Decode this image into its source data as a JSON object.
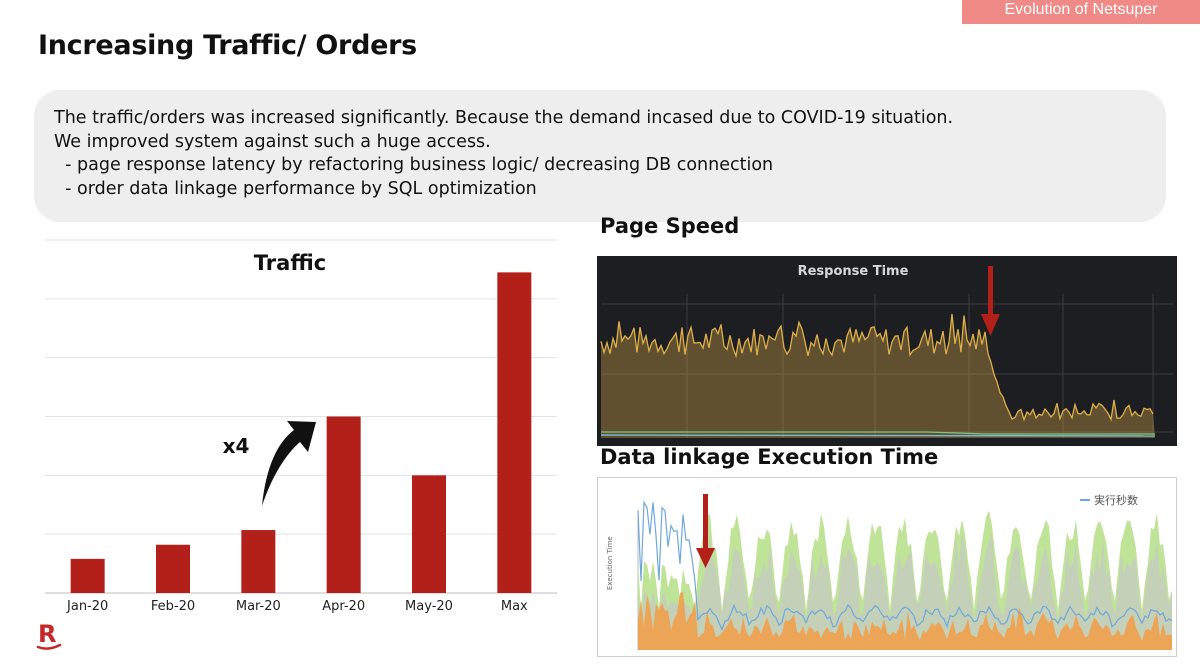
{
  "header_tag": "Evolution of Netsuper",
  "page_title": "Increasing Traffic/ Orders",
  "summary_lines": [
    "The traffic/orders was increased significantly. Because the demand incased due to COVID-19 situation.",
    "We improved system against such a huge access.",
    "  - page response latency by refactoring business logic/ decreasing DB connection",
    "  - order data linkage performance by SQL optimization"
  ],
  "chart_data": [
    {
      "type": "bar",
      "title": "Traffic",
      "categories": [
        "Jan-20",
        "Feb-20",
        "Mar-20",
        "Apr-20",
        "May-20",
        "Max"
      ],
      "values": [
        0.58,
        0.82,
        1.07,
        3.0,
        2.0,
        5.45
      ],
      "ylim": [
        0,
        6
      ],
      "grid": true,
      "bar_color": "#b3201a",
      "annotation": "x4",
      "xlabel": "",
      "ylabel": ""
    },
    {
      "type": "area",
      "title": "Response Time",
      "section_title": "Page Speed",
      "background": "#1d1e22",
      "series_color": "#e0b048",
      "marker": "down-arrow",
      "marker_color": "#b3201a"
    },
    {
      "type": "area",
      "section_title": "Data linkage Execution Time",
      "ylabel": "Execution Time",
      "legend": {
        "label": "実行秒数",
        "color": "#6fa8dc",
        "position": "top-right"
      },
      "series_colors": [
        "#6fa8dc",
        "#b8e08c",
        "#c8c8c8",
        "#f0a04c"
      ],
      "marker": "down-arrow",
      "marker_color": "#b3201a"
    }
  ],
  "logo": {
    "letter": "R",
    "color": "#c62828"
  }
}
